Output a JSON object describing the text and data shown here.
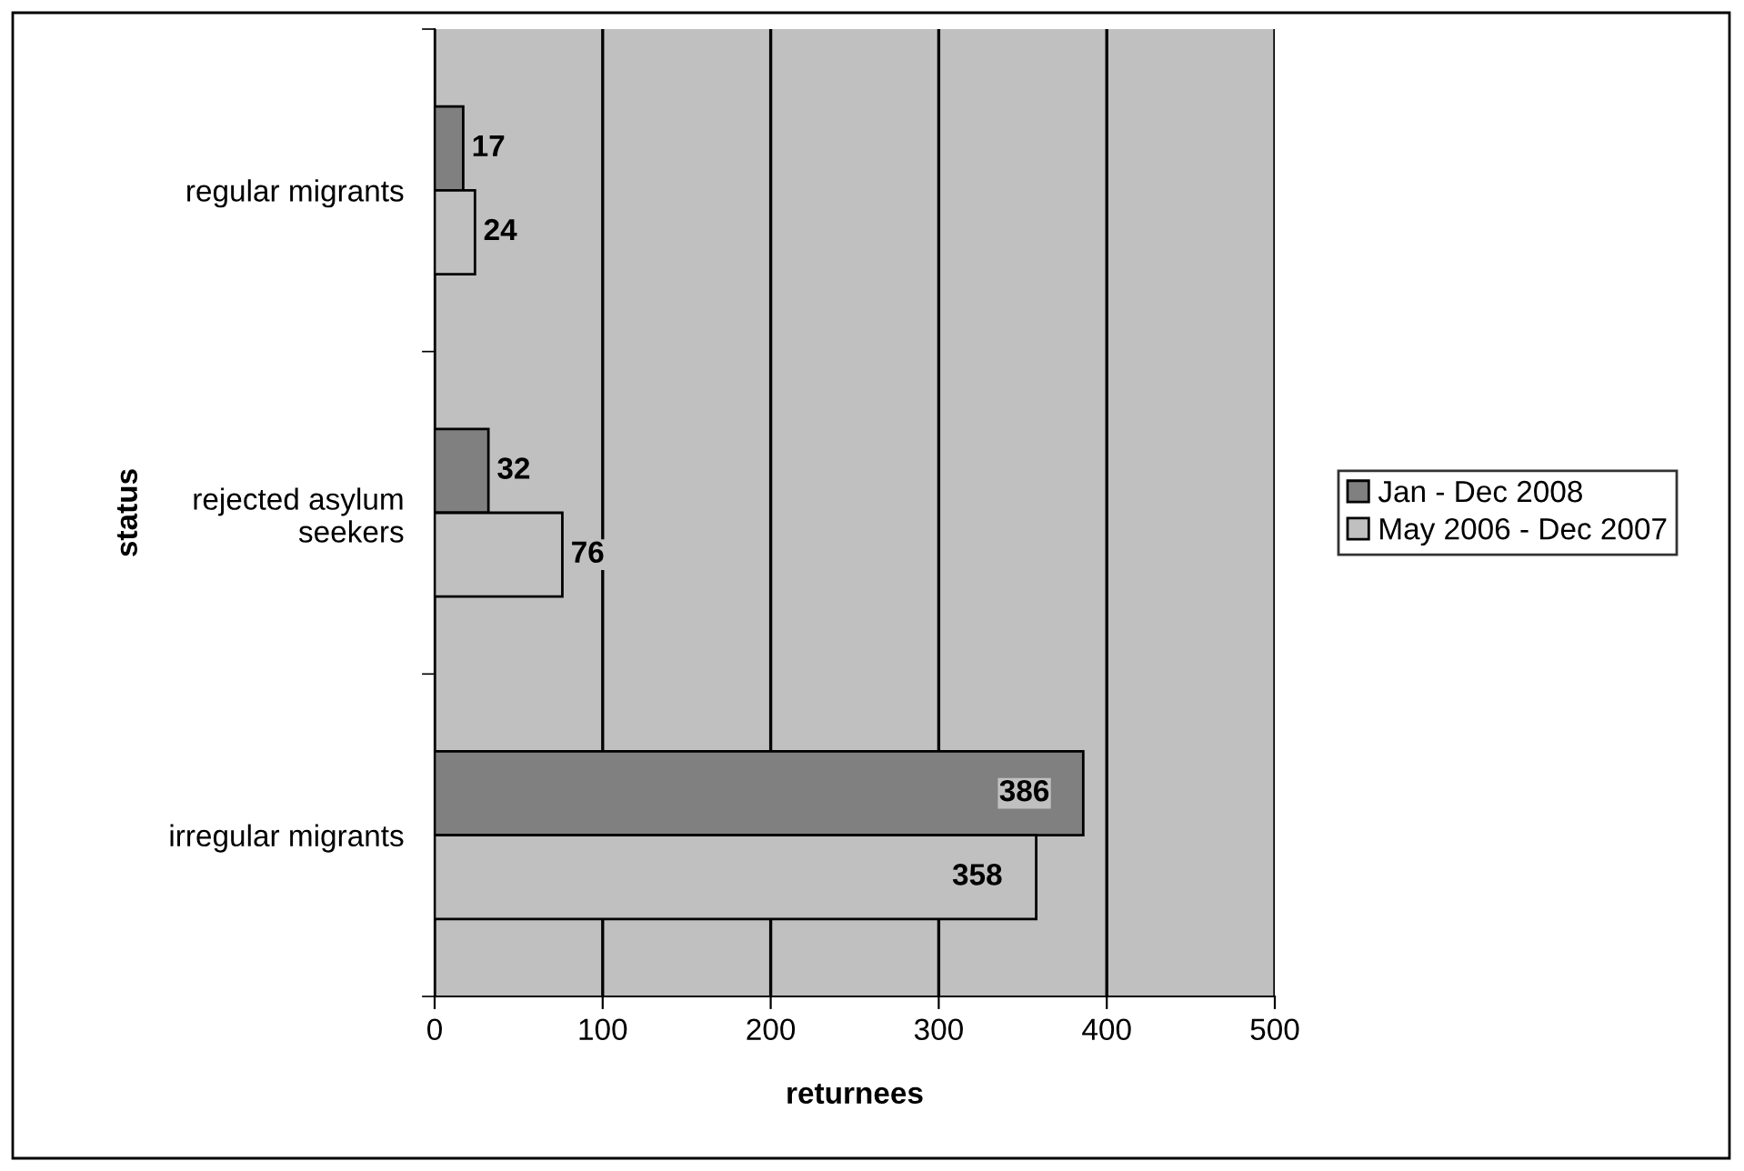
{
  "chart_data": {
    "type": "bar",
    "orientation": "horizontal",
    "xlabel": "returnees",
    "ylabel": "status",
    "categories": [
      "regular migrants",
      "rejected asylum\nseekers",
      "irregular migrants"
    ],
    "series": [
      {
        "name": "Jan - Dec 2008",
        "color": "#808080",
        "values": [
          17,
          32,
          386
        ]
      },
      {
        "name": "May 2006 - Dec 2007",
        "color": "#c0c0c0",
        "values": [
          24,
          76,
          358
        ]
      }
    ],
    "xlim": [
      0,
      500
    ],
    "xticks": [
      0,
      100,
      200,
      300,
      400,
      500
    ],
    "grid": "x",
    "legend": "right",
    "data_labels": true
  }
}
